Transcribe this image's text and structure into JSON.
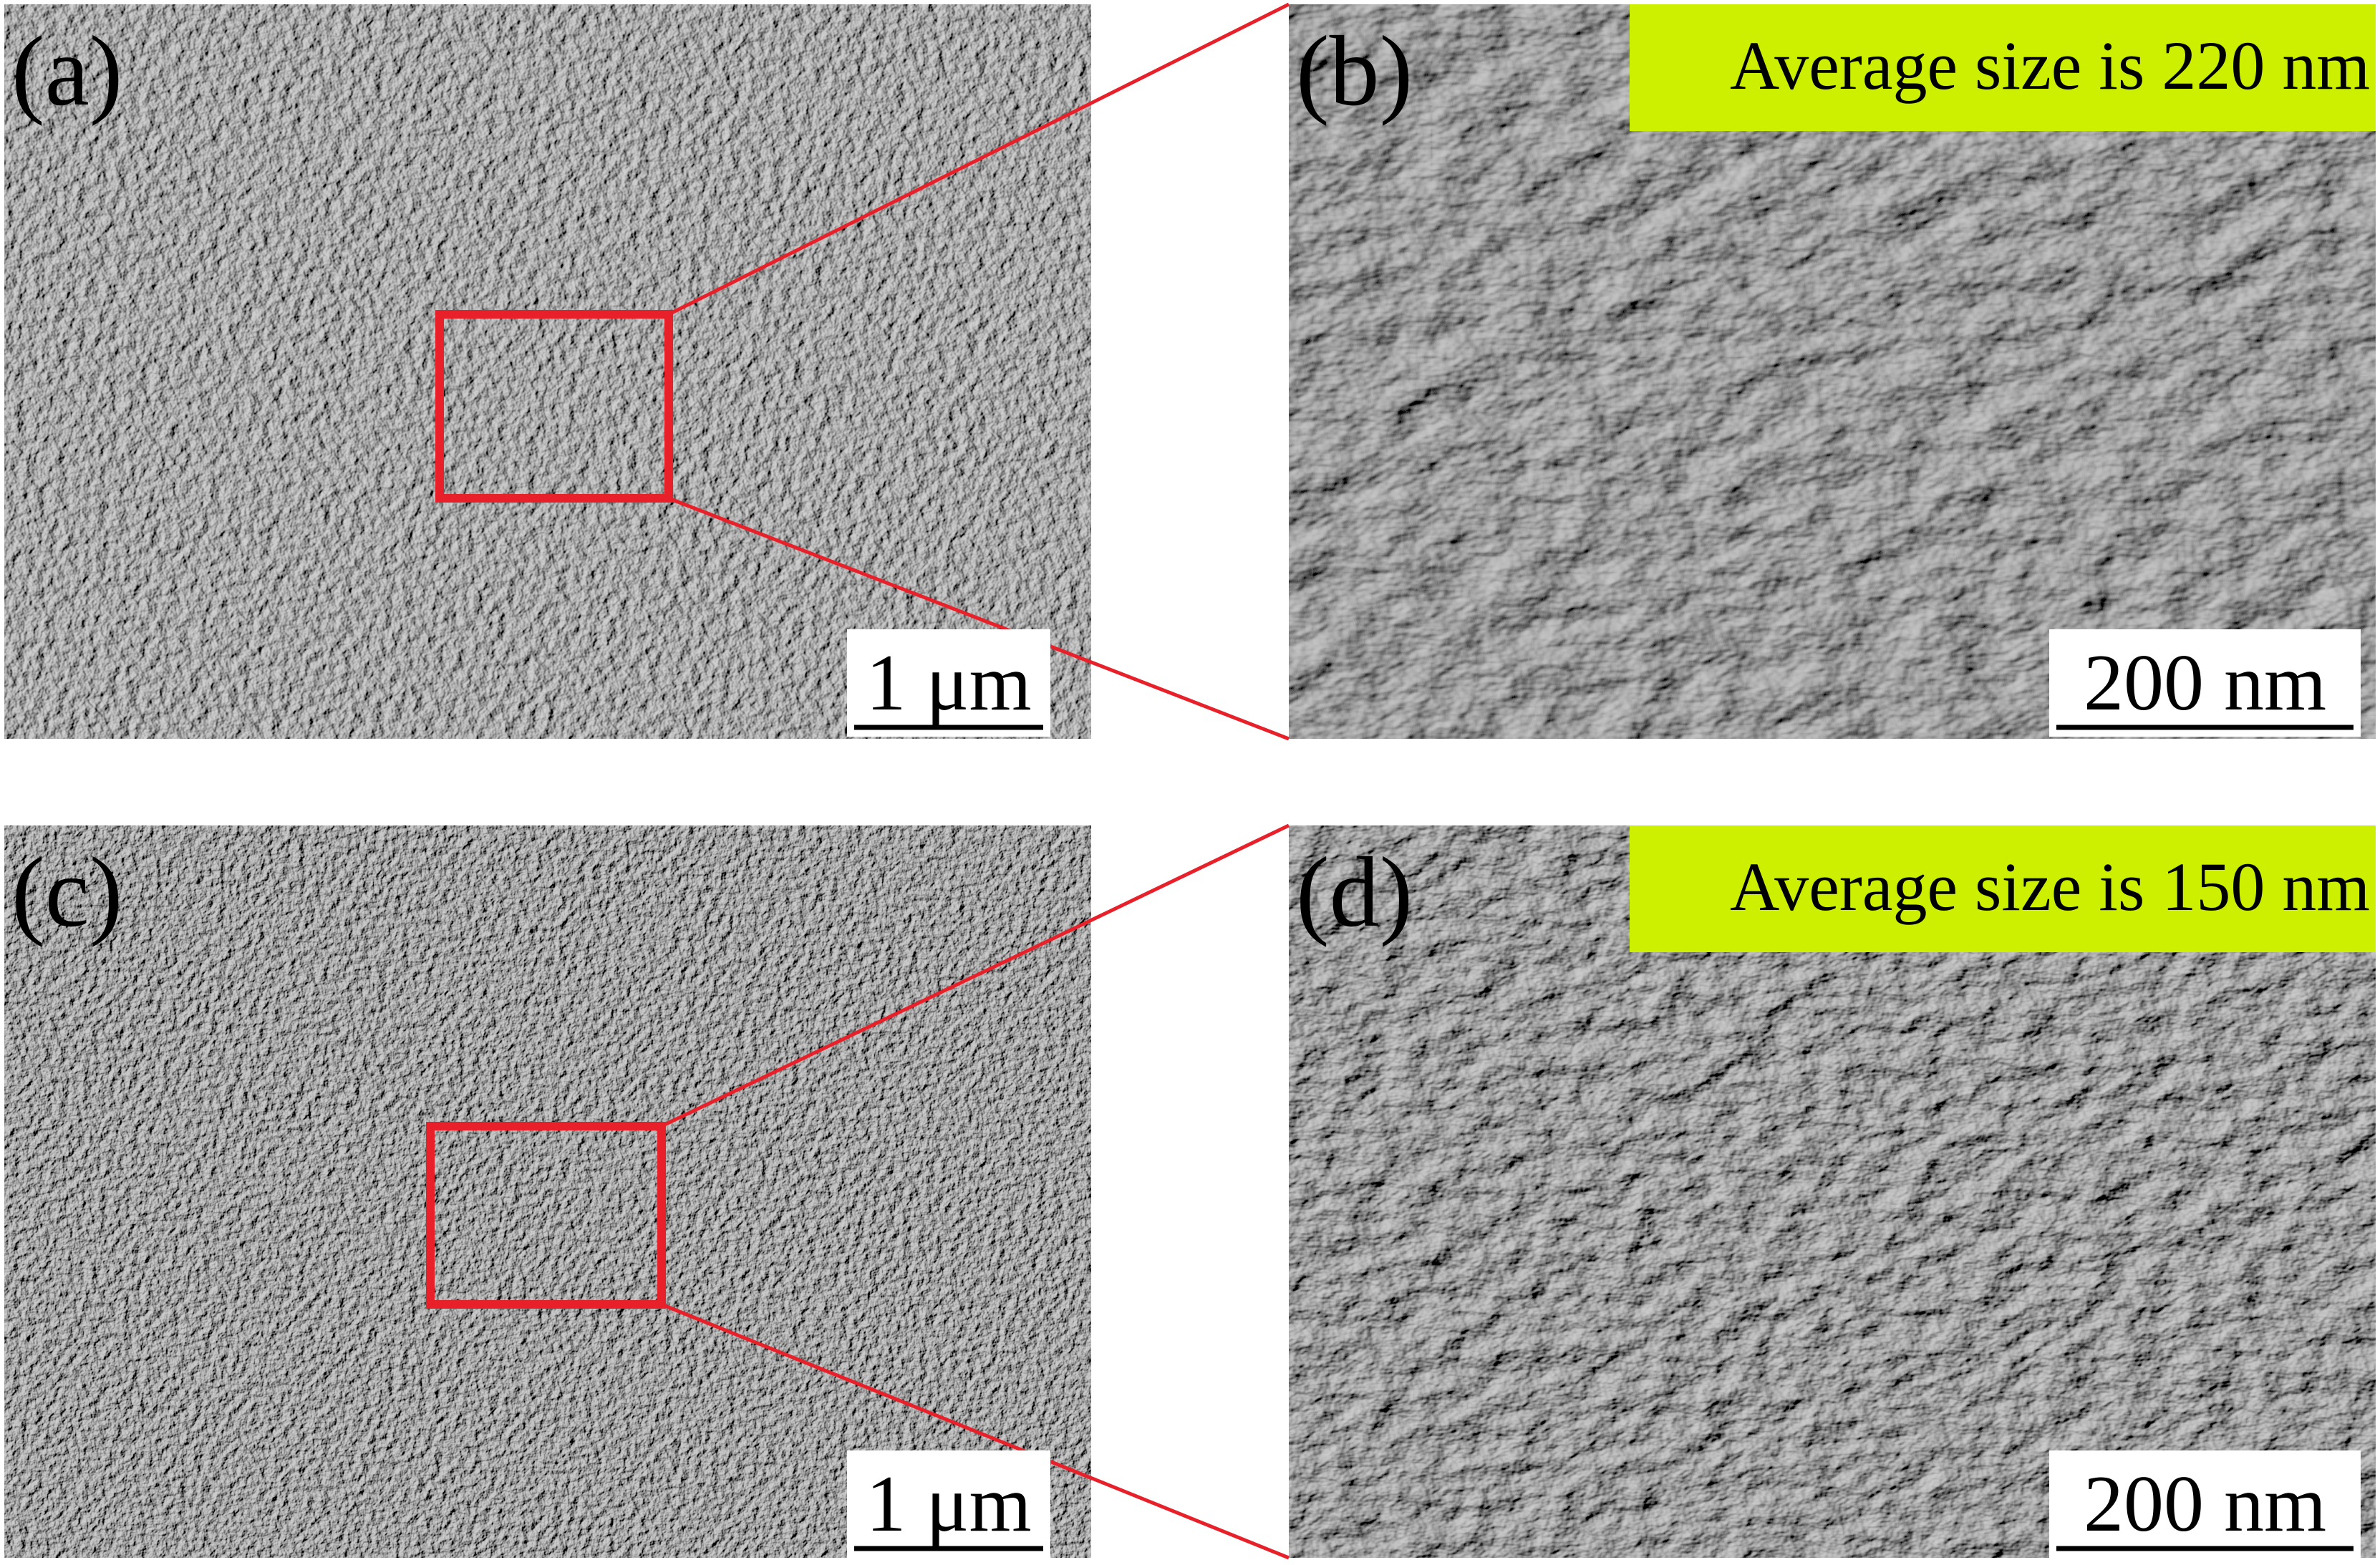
{
  "panels": [
    {
      "label": "(a)",
      "scale_bar": "1 μm"
    },
    {
      "label": "(b)",
      "annotation": "Average size is 220 nm",
      "scale_bar": "200 nm"
    },
    {
      "label": "(c)",
      "scale_bar": "1 μm"
    },
    {
      "label": "(d)",
      "annotation": "Average size is 150 nm",
      "scale_bar": "200 nm"
    }
  ]
}
